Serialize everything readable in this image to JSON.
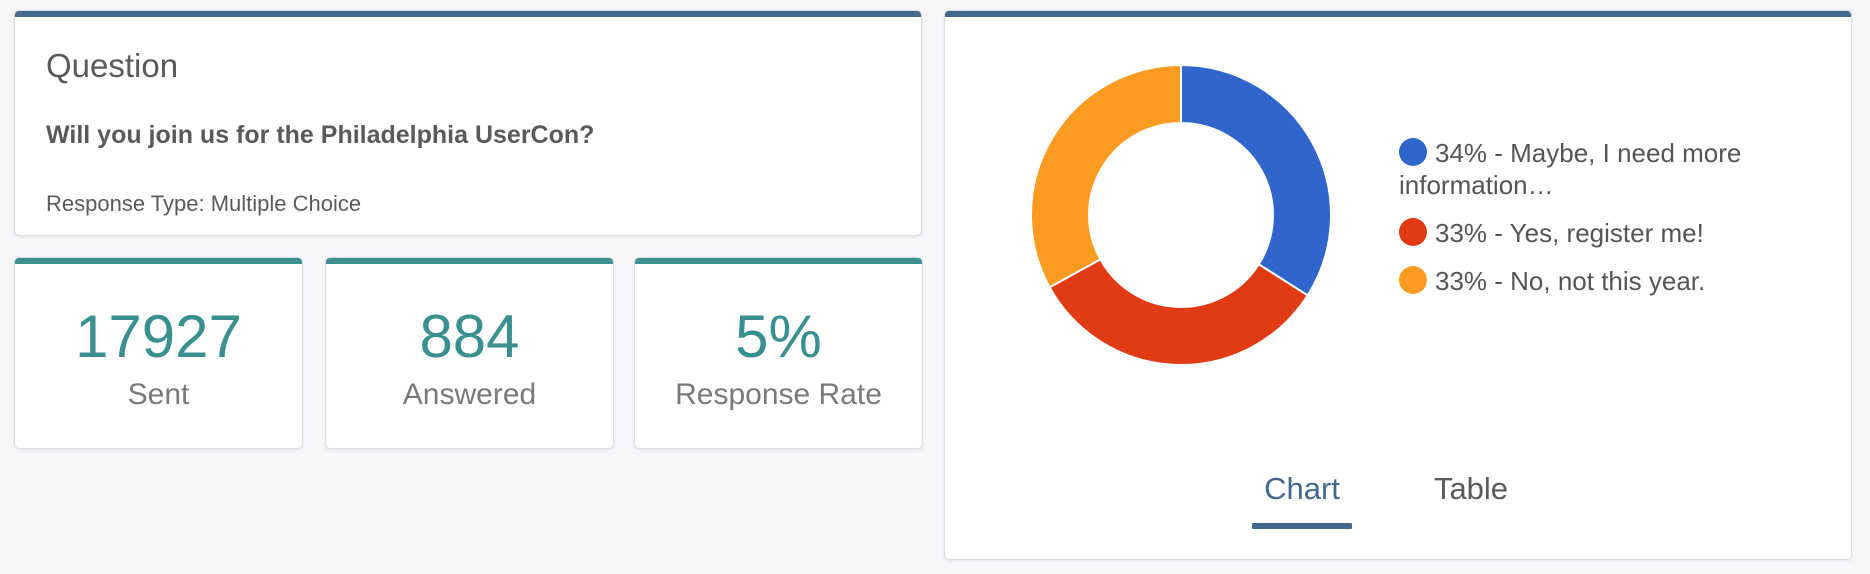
{
  "question": {
    "heading": "Question",
    "text": "Will you join us for the Philadelphia UserCon?",
    "response_type": "Response Type: Multiple Choice"
  },
  "stats": {
    "sent": {
      "value": "17927",
      "label": "Sent"
    },
    "answered": {
      "value": "884",
      "label": "Answered"
    },
    "rate": {
      "value": "5%",
      "label": "Response Rate"
    }
  },
  "chart_data": {
    "type": "pie",
    "donut": true,
    "categories": [
      "Maybe, I need more information…",
      "Yes, register me!",
      "No, not this year."
    ],
    "values": [
      34,
      33,
      33
    ],
    "colors": [
      "#3066cc",
      "#e03b14",
      "#fc9b22"
    ],
    "legend": [
      "34% - Maybe, I need more information…",
      "33% - Yes, register me!",
      "33% - No, not this year."
    ],
    "legend_position": "right"
  },
  "tabs": {
    "chart": "Chart",
    "table": "Table",
    "active": "chart"
  },
  "colors": {
    "header_bar": "#44698f",
    "stat_bar": "#3e8f8f",
    "stat_value": "#3a8f8f"
  }
}
